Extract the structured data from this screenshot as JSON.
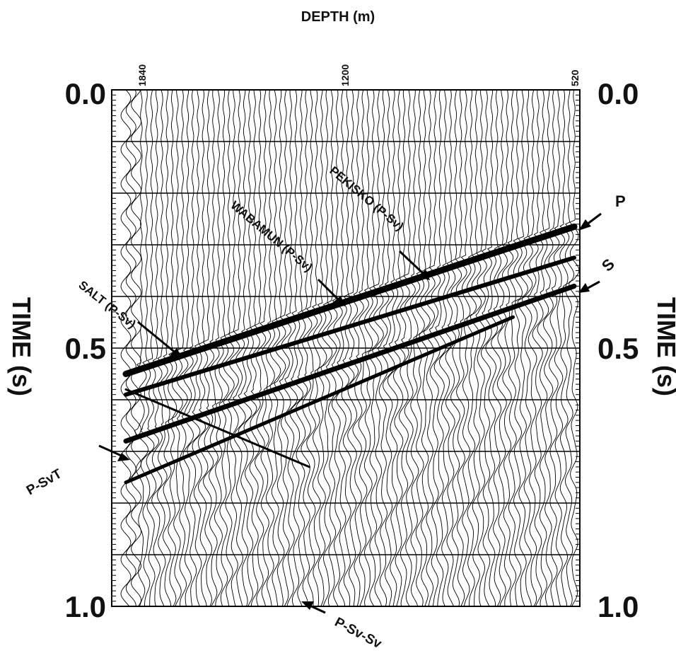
{
  "chart_data": {
    "type": "seismic-record",
    "title": "DEPTH (m)",
    "xlabel": "DEPTH (m)",
    "ylabel": "TIME (s)",
    "depth_ticks": [
      {
        "label": "1840",
        "value": 1840
      },
      {
        "label": "1200",
        "value": 1200
      },
      {
        "label": "520",
        "value": 520
      }
    ],
    "time_ticks": [
      {
        "label": "0.0",
        "value": 0.0
      },
      {
        "label": "0.5",
        "value": 0.5
      },
      {
        "label": "1.0",
        "value": 1.0
      }
    ],
    "time_range": [
      0.0,
      1.0
    ],
    "depth_range": [
      1840,
      520
    ],
    "gridlines_time": [
      0.1,
      0.2,
      0.3,
      0.4,
      0.5,
      0.6,
      0.7,
      0.8,
      0.9
    ],
    "trace_count": 88,
    "first_arrivals": {
      "P": [
        {
          "depth": 1840,
          "time": 0.55
        },
        {
          "depth": 520,
          "time": 0.265
        }
      ],
      "S": [
        {
          "depth": 1840,
          "time": 0.68
        },
        {
          "depth": 520,
          "time": 0.38
        }
      ]
    },
    "events": [
      {
        "label": "SALT (P-Sv)",
        "depth": 1720,
        "time": 0.515
      },
      {
        "label": "WABAMUN (P-Sv)",
        "depth": 1280,
        "time": 0.41
      },
      {
        "label": "PEKISKO (P-Sv)",
        "depth": 980,
        "time": 0.365
      },
      {
        "label": "P",
        "depth": 530,
        "time": 0.27
      },
      {
        "label": "S",
        "depth": 530,
        "time": 0.39
      },
      {
        "label": "P-SvT",
        "depth": 1830,
        "time": 0.69
      },
      {
        "label": "P-Sv-Sv",
        "depth": 1320,
        "time": 1.0
      }
    ]
  }
}
